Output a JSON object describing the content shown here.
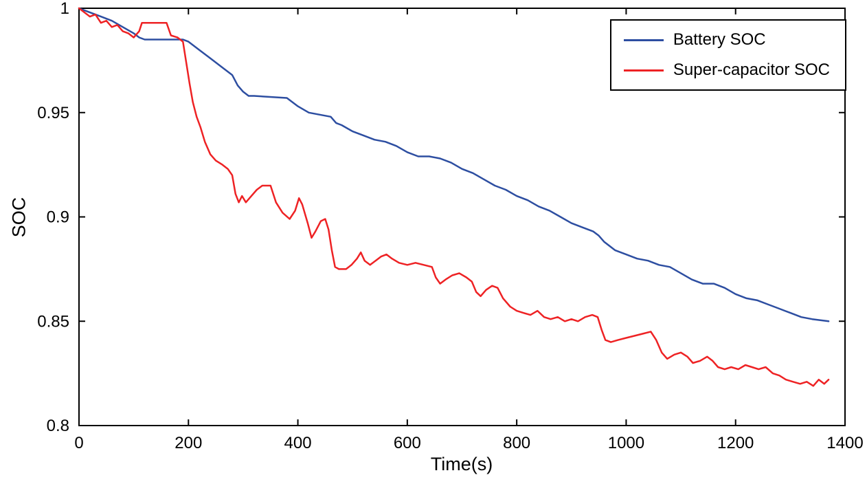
{
  "chart_data": {
    "type": "line",
    "title": "",
    "xlabel": "Time(s)",
    "ylabel": "SOC",
    "xlim": [
      0,
      1400
    ],
    "ylim": [
      0.8,
      1.0
    ],
    "xticks": [
      0,
      200,
      400,
      600,
      800,
      1000,
      1200,
      1400
    ],
    "yticks": [
      0.8,
      0.85,
      0.9,
      0.95,
      1
    ],
    "ytick_labels": [
      "0.8",
      "0.85",
      "0.9",
      "0.95",
      "1"
    ],
    "grid": false,
    "legend_position": "top-right",
    "axis_color": "#000000",
    "series": [
      {
        "name": "Battery SOC",
        "color": "#2d4ea1",
        "x": [
          0,
          20,
          40,
          60,
          80,
          100,
          110,
          120,
          190,
          200,
          220,
          240,
          260,
          280,
          290,
          300,
          310,
          320,
          380,
          400,
          420,
          440,
          460,
          470,
          480,
          500,
          520,
          540,
          560,
          580,
          600,
          620,
          640,
          660,
          680,
          700,
          720,
          740,
          760,
          780,
          800,
          820,
          840,
          860,
          880,
          900,
          920,
          940,
          950,
          960,
          980,
          1000,
          1020,
          1040,
          1060,
          1080,
          1100,
          1120,
          1140,
          1160,
          1180,
          1200,
          1220,
          1240,
          1260,
          1280,
          1300,
          1320,
          1340,
          1370
        ],
        "y": [
          1.0,
          0.998,
          0.996,
          0.994,
          0.991,
          0.988,
          0.986,
          0.985,
          0.985,
          0.984,
          0.98,
          0.976,
          0.972,
          0.968,
          0.963,
          0.96,
          0.958,
          0.958,
          0.957,
          0.953,
          0.95,
          0.949,
          0.948,
          0.945,
          0.944,
          0.941,
          0.939,
          0.937,
          0.936,
          0.934,
          0.931,
          0.929,
          0.929,
          0.928,
          0.926,
          0.923,
          0.921,
          0.918,
          0.915,
          0.913,
          0.91,
          0.908,
          0.905,
          0.903,
          0.9,
          0.897,
          0.895,
          0.893,
          0.891,
          0.888,
          0.884,
          0.882,
          0.88,
          0.879,
          0.877,
          0.876,
          0.873,
          0.87,
          0.868,
          0.868,
          0.866,
          0.863,
          0.861,
          0.86,
          0.858,
          0.856,
          0.854,
          0.852,
          0.851,
          0.85
        ]
      },
      {
        "name": "Super-capacitor SOC",
        "color": "#ee2224",
        "x": [
          0,
          10,
          20,
          30,
          40,
          50,
          60,
          70,
          80,
          90,
          100,
          110,
          115,
          160,
          168,
          180,
          190,
          196,
          202,
          208,
          215,
          222,
          230,
          240,
          250,
          262,
          272,
          280,
          286,
          292,
          298,
          305,
          315,
          325,
          335,
          350,
          360,
          372,
          385,
          395,
          402,
          408,
          418,
          425,
          432,
          442,
          450,
          456,
          462,
          468,
          475,
          488,
          498,
          508,
          515,
          522,
          532,
          542,
          552,
          562,
          572,
          585,
          600,
          615,
          630,
          645,
          652,
          660,
          670,
          682,
          695,
          708,
          718,
          726,
          734,
          744,
          755,
          765,
          775,
          788,
          800,
          812,
          825,
          838,
          850,
          862,
          875,
          888,
          900,
          912,
          925,
          938,
          948,
          955,
          962,
          972,
          985,
          1000,
          1015,
          1030,
          1045,
          1055,
          1065,
          1075,
          1088,
          1100,
          1112,
          1122,
          1135,
          1148,
          1158,
          1168,
          1180,
          1192,
          1205,
          1218,
          1230,
          1242,
          1255,
          1268,
          1280,
          1292,
          1305,
          1318,
          1330,
          1342,
          1352,
          1362,
          1370
        ],
        "y": [
          1.0,
          0.998,
          0.996,
          0.997,
          0.993,
          0.994,
          0.991,
          0.992,
          0.989,
          0.988,
          0.986,
          0.989,
          0.993,
          0.993,
          0.987,
          0.986,
          0.984,
          0.974,
          0.964,
          0.955,
          0.948,
          0.943,
          0.936,
          0.93,
          0.927,
          0.925,
          0.923,
          0.92,
          0.911,
          0.907,
          0.91,
          0.907,
          0.91,
          0.913,
          0.915,
          0.915,
          0.907,
          0.902,
          0.899,
          0.903,
          0.909,
          0.906,
          0.897,
          0.89,
          0.893,
          0.898,
          0.899,
          0.894,
          0.884,
          0.876,
          0.875,
          0.875,
          0.877,
          0.88,
          0.883,
          0.879,
          0.877,
          0.879,
          0.881,
          0.882,
          0.88,
          0.878,
          0.877,
          0.878,
          0.877,
          0.876,
          0.871,
          0.868,
          0.87,
          0.872,
          0.873,
          0.871,
          0.869,
          0.864,
          0.862,
          0.865,
          0.867,
          0.866,
          0.861,
          0.857,
          0.855,
          0.854,
          0.853,
          0.855,
          0.852,
          0.851,
          0.852,
          0.85,
          0.851,
          0.85,
          0.852,
          0.853,
          0.852,
          0.846,
          0.841,
          0.84,
          0.841,
          0.842,
          0.843,
          0.844,
          0.845,
          0.841,
          0.835,
          0.832,
          0.834,
          0.835,
          0.833,
          0.83,
          0.831,
          0.833,
          0.831,
          0.828,
          0.827,
          0.828,
          0.827,
          0.829,
          0.828,
          0.827,
          0.828,
          0.825,
          0.824,
          0.822,
          0.821,
          0.82,
          0.821,
          0.819,
          0.822,
          0.82,
          0.822
        ]
      }
    ]
  }
}
